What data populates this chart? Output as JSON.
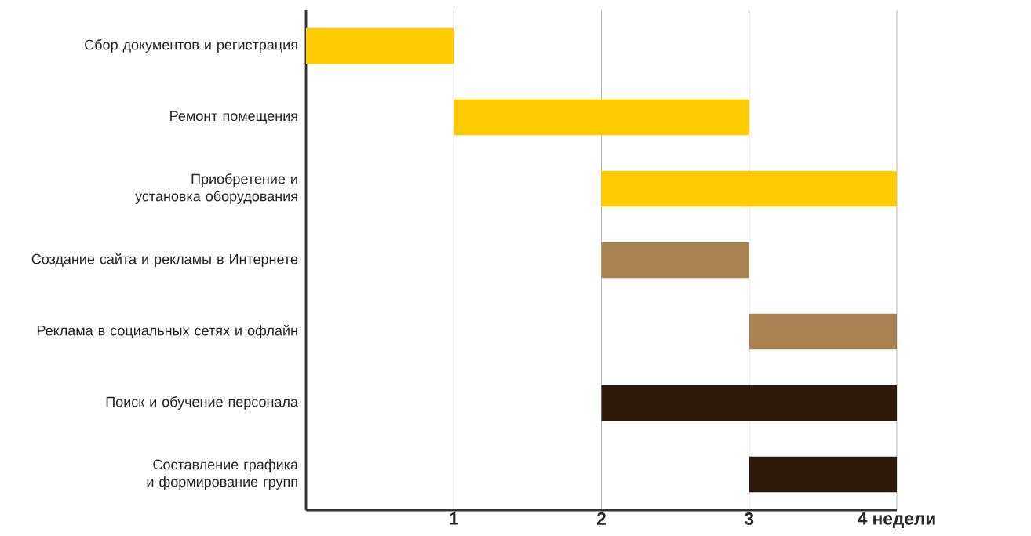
{
  "chart_data": {
    "type": "bar",
    "orientation": "horizontal",
    "categories": [
      "Сбор документов и регистрация",
      "Ремонт помещения",
      "Приобретение и установка оборудования",
      "Создание сайта и рекламы в Интернете",
      "Реклама в социальных сетях и офлайн",
      "Поиск и обучение персонала",
      "Составление графика и формирование групп"
    ],
    "base": [
      0,
      1,
      2,
      2,
      3,
      2,
      3
    ],
    "values": [
      1,
      2,
      2,
      1,
      1,
      2,
      1
    ],
    "colors": [
      "#ffcc00",
      "#ffcc00",
      "#ffcc00",
      "#a88150",
      "#a88150",
      "#2c1b0c",
      "#2c1b0c"
    ],
    "xlim": [
      0,
      4
    ],
    "xticks": [
      1,
      2,
      3,
      {
        "value": 4,
        "label": "4 недели"
      }
    ],
    "grid": "x"
  }
}
